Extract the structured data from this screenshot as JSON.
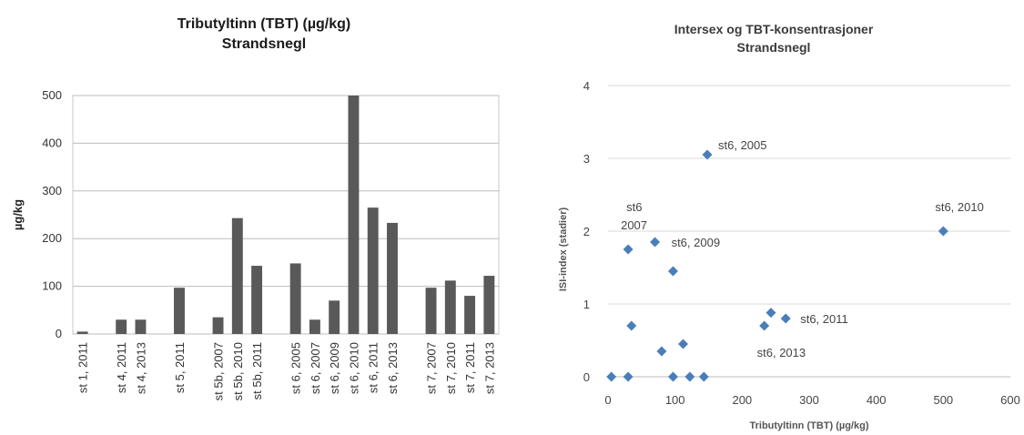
{
  "chart_data": [
    {
      "type": "bar",
      "title": "Tributyltinn (TBT) (µg/kg)",
      "subtitle": "Strandsnegl",
      "ylabel": "µg/kg",
      "xlabel": "",
      "ylim": [
        0,
        500
      ],
      "yticks": [
        0,
        100,
        200,
        300,
        400,
        500
      ],
      "grid": true,
      "legend": "none",
      "color": "#595959",
      "categories": [
        "st 1, 2011",
        "",
        "st 4, 2011",
        "st 4, 2013",
        "",
        "st 5, 2011",
        "",
        "st 5b, 2007",
        "st 5b, 2010",
        "st 5b, 2011",
        "",
        "st 6, 2005",
        "st 6, 2007",
        "st 6, 2009",
        "st 6, 2010",
        "st 6, 2011",
        "st 6, 2013",
        "",
        "st 7, 2007",
        "st 7, 2010",
        "st 7, 2011",
        "st 7, 2013"
      ],
      "values": [
        5,
        null,
        30,
        30,
        null,
        97,
        null,
        35,
        243,
        143,
        null,
        148,
        30,
        70,
        500,
        265,
        233,
        null,
        97,
        112,
        80,
        122
      ]
    },
    {
      "type": "scatter",
      "title": "Intersex og TBT-konsentrasjoner",
      "subtitle": "Strandsnegl",
      "xlabel": "Tributyltinn (TBT) (µg/kg)",
      "ylabel": "ISI-index (stadier)",
      "xlim": [
        0,
        600
      ],
      "ylim": [
        0,
        4
      ],
      "xticks": [
        0,
        100,
        200,
        300,
        400,
        500,
        600
      ],
      "yticks": [
        0,
        1,
        2,
        3,
        4
      ],
      "grid": true,
      "legend": "none",
      "color": "#4a7ebb",
      "points": [
        {
          "x": 5,
          "y": 0
        },
        {
          "x": 30,
          "y": 0
        },
        {
          "x": 97,
          "y": 0
        },
        {
          "x": 122,
          "y": 0
        },
        {
          "x": 143,
          "y": 0
        },
        {
          "x": 35,
          "y": 0.7
        },
        {
          "x": 80,
          "y": 0.35
        },
        {
          "x": 112,
          "y": 0.45
        },
        {
          "x": 97,
          "y": 1.45
        },
        {
          "x": 233,
          "y": 0.7
        },
        {
          "x": 243,
          "y": 0.88
        },
        {
          "x": 265,
          "y": 0.8
        },
        {
          "x": 30,
          "y": 1.75
        },
        {
          "x": 70,
          "y": 1.85
        },
        {
          "x": 148,
          "y": 3.05
        },
        {
          "x": 500,
          "y": 2.0
        }
      ],
      "annotations": [
        {
          "text": "st6, 2005"
        },
        {
          "text": "st6"
        },
        {
          "text": "2007"
        },
        {
          "text": "st6, 2009"
        },
        {
          "text": "st6, 2010"
        },
        {
          "text": "st6, 2011"
        },
        {
          "text": "st6, 2013"
        }
      ]
    }
  ]
}
